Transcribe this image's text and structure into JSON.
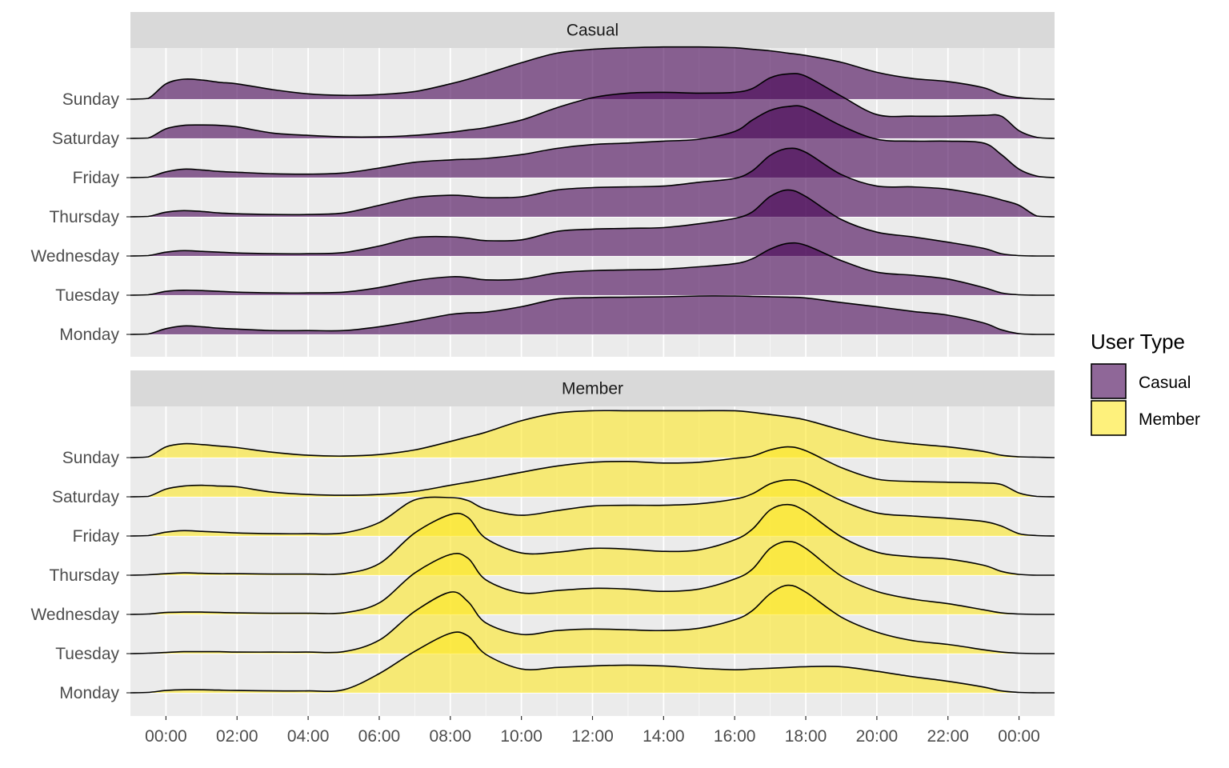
{
  "chart_data": {
    "type": "ridgeline",
    "x_axis": {
      "tick_labels": [
        "00:00",
        "02:00",
        "04:00",
        "06:00",
        "08:00",
        "10:00",
        "12:00",
        "14:00",
        "16:00",
        "18:00",
        "20:00",
        "22:00",
        "00:00"
      ],
      "tick_hours": [
        0,
        2,
        4,
        6,
        8,
        10,
        12,
        14,
        16,
        18,
        20,
        22,
        24
      ],
      "range_hours": [
        -1,
        25
      ]
    },
    "days": [
      "Monday",
      "Tuesday",
      "Wednesday",
      "Thursday",
      "Friday",
      "Saturday",
      "Sunday"
    ],
    "x_hours": [
      -1.0,
      -0.5,
      0,
      0.5,
      1,
      1.5,
      2,
      3,
      4,
      5,
      6,
      7,
      8,
      8.5,
      9,
      10,
      11,
      12,
      13,
      14,
      15,
      16,
      16.5,
      17,
      17.5,
      18,
      19,
      20,
      21,
      22,
      23,
      23.5,
      24,
      24.5,
      25
    ],
    "panels": [
      {
        "strip_label": "Casual",
        "fill": "#440154",
        "series": [
          {
            "day": "Monday",
            "values": [
              0,
              0.01,
              0.15,
              0.22,
              0.2,
              0.16,
              0.14,
              0.1,
              0.1,
              0.1,
              0.2,
              0.35,
              0.52,
              0.56,
              0.58,
              0.72,
              0.92,
              0.96,
              0.97,
              0.98,
              1.0,
              1.0,
              0.99,
              0.98,
              0.97,
              0.95,
              0.83,
              0.72,
              0.6,
              0.5,
              0.3,
              0.12,
              0.02,
              0,
              0
            ]
          },
          {
            "day": "Tuesday",
            "values": [
              0,
              0.01,
              0.1,
              0.13,
              0.12,
              0.1,
              0.08,
              0.06,
              0.06,
              0.08,
              0.2,
              0.38,
              0.48,
              0.46,
              0.4,
              0.42,
              0.58,
              0.64,
              0.66,
              0.68,
              0.74,
              0.82,
              0.95,
              1.2,
              1.35,
              1.3,
              0.9,
              0.6,
              0.52,
              0.42,
              0.2,
              0.06,
              0.01,
              0,
              0
            ]
          },
          {
            "day": "Wednesday",
            "values": [
              0,
              0.01,
              0.1,
              0.14,
              0.12,
              0.1,
              0.08,
              0.06,
              0.06,
              0.09,
              0.26,
              0.48,
              0.5,
              0.46,
              0.4,
              0.42,
              0.64,
              0.7,
              0.72,
              0.74,
              0.84,
              0.98,
              1.15,
              1.55,
              1.72,
              1.55,
              0.95,
              0.62,
              0.5,
              0.36,
              0.2,
              0.06,
              0.01,
              0,
              0
            ]
          },
          {
            "day": "Thursday",
            "values": [
              0,
              0.01,
              0.12,
              0.16,
              0.14,
              0.1,
              0.08,
              0.06,
              0.06,
              0.1,
              0.3,
              0.5,
              0.56,
              0.54,
              0.5,
              0.52,
              0.7,
              0.76,
              0.78,
              0.8,
              0.9,
              1.0,
              1.2,
              1.6,
              1.78,
              1.68,
              1.1,
              0.8,
              0.78,
              0.72,
              0.56,
              0.44,
              0.3,
              0.02,
              0
            ]
          },
          {
            "day": "Friday",
            "values": [
              0,
              0.01,
              0.15,
              0.22,
              0.2,
              0.16,
              0.14,
              0.1,
              0.09,
              0.12,
              0.25,
              0.4,
              0.46,
              0.48,
              0.5,
              0.6,
              0.76,
              0.86,
              0.9,
              0.95,
              1.0,
              1.2,
              1.5,
              1.75,
              1.85,
              1.82,
              1.35,
              1.0,
              0.95,
              0.95,
              0.9,
              0.6,
              0.22,
              0.04,
              0
            ]
          },
          {
            "day": "Saturday",
            "values": [
              0,
              0.01,
              0.25,
              0.34,
              0.35,
              0.34,
              0.3,
              0.14,
              0.08,
              0.04,
              0.04,
              0.08,
              0.16,
              0.22,
              0.28,
              0.48,
              0.8,
              1.06,
              1.18,
              1.2,
              1.18,
              1.2,
              1.3,
              1.58,
              1.68,
              1.62,
              1.1,
              0.62,
              0.58,
              0.58,
              0.6,
              0.58,
              0.2,
              0.03,
              0
            ]
          },
          {
            "day": "Sunday",
            "values": [
              0,
              0.02,
              0.4,
              0.52,
              0.5,
              0.44,
              0.4,
              0.25,
              0.14,
              0.1,
              0.12,
              0.2,
              0.4,
              0.52,
              0.66,
              0.95,
              1.2,
              1.3,
              1.34,
              1.36,
              1.36,
              1.34,
              1.3,
              1.26,
              1.2,
              1.14,
              0.96,
              0.7,
              0.54,
              0.46,
              0.3,
              0.12,
              0.04,
              0.01,
              0
            ]
          }
        ]
      },
      {
        "strip_label": "Member",
        "fill": "#FDE725",
        "series": [
          {
            "day": "Monday",
            "values": [
              0,
              0.01,
              0.06,
              0.08,
              0.08,
              0.07,
              0.06,
              0.05,
              0.05,
              0.08,
              0.5,
              1.08,
              1.55,
              1.48,
              1.0,
              0.62,
              0.66,
              0.7,
              0.72,
              0.7,
              0.64,
              0.6,
              0.62,
              0.64,
              0.66,
              0.68,
              0.68,
              0.56,
              0.42,
              0.3,
              0.15,
              0.05,
              0.01,
              0,
              0
            ]
          },
          {
            "day": "Tuesday",
            "values": [
              0,
              0.01,
              0.03,
              0.05,
              0.05,
              0.05,
              0.04,
              0.04,
              0.04,
              0.05,
              0.35,
              1.1,
              1.6,
              1.35,
              0.8,
              0.5,
              0.6,
              0.64,
              0.62,
              0.6,
              0.66,
              0.88,
              1.12,
              1.56,
              1.78,
              1.6,
              0.95,
              0.56,
              0.34,
              0.24,
              0.1,
              0.04,
              0.01,
              0,
              0
            ]
          },
          {
            "day": "Wednesday",
            "values": [
              0,
              0.01,
              0.05,
              0.06,
              0.06,
              0.05,
              0.04,
              0.03,
              0.03,
              0.04,
              0.3,
              1.08,
              1.56,
              1.46,
              0.9,
              0.56,
              0.62,
              0.68,
              0.66,
              0.6,
              0.66,
              0.92,
              1.18,
              1.72,
              1.9,
              1.72,
              1.0,
              0.6,
              0.4,
              0.28,
              0.12,
              0.04,
              0.01,
              0,
              0
            ]
          },
          {
            "day": "Thursday",
            "values": [
              0,
              0.01,
              0.04,
              0.06,
              0.05,
              0.04,
              0.04,
              0.03,
              0.03,
              0.04,
              0.3,
              1.1,
              1.58,
              1.5,
              0.96,
              0.58,
              0.6,
              0.7,
              0.68,
              0.62,
              0.66,
              0.92,
              1.2,
              1.7,
              1.84,
              1.66,
              1.0,
              0.6,
              0.48,
              0.42,
              0.26,
              0.1,
              0.02,
              0,
              0
            ]
          },
          {
            "day": "Friday",
            "values": [
              0,
              0.01,
              0.1,
              0.14,
              0.12,
              0.1,
              0.08,
              0.06,
              0.06,
              0.08,
              0.35,
              0.94,
              1.0,
              0.92,
              0.7,
              0.54,
              0.66,
              0.78,
              0.8,
              0.8,
              0.84,
              0.96,
              1.1,
              1.36,
              1.46,
              1.38,
              0.92,
              0.6,
              0.52,
              0.46,
              0.38,
              0.26,
              0.06,
              0.01,
              0
            ]
          },
          {
            "day": "Saturday",
            "values": [
              0,
              0.01,
              0.2,
              0.28,
              0.3,
              0.28,
              0.26,
              0.12,
              0.06,
              0.04,
              0.06,
              0.14,
              0.3,
              0.38,
              0.46,
              0.64,
              0.8,
              0.9,
              0.92,
              0.88,
              0.9,
              1.0,
              1.06,
              1.22,
              1.3,
              1.2,
              0.76,
              0.46,
              0.4,
              0.38,
              0.36,
              0.32,
              0.1,
              0.01,
              0
            ]
          },
          {
            "day": "Sunday",
            "values": [
              0,
              0.02,
              0.28,
              0.36,
              0.34,
              0.3,
              0.26,
              0.14,
              0.06,
              0.04,
              0.08,
              0.2,
              0.42,
              0.54,
              0.66,
              0.96,
              1.16,
              1.22,
              1.22,
              1.22,
              1.22,
              1.22,
              1.18,
              1.12,
              1.06,
              0.98,
              0.72,
              0.48,
              0.36,
              0.28,
              0.16,
              0.06,
              0.02,
              0.01,
              0
            ]
          }
        ]
      }
    ],
    "legend": {
      "title": "User Type",
      "position": "right",
      "items": [
        {
          "label": "Casual",
          "color": "#440154"
        },
        {
          "label": "Member",
          "color": "#FDE725"
        }
      ]
    },
    "fill_alpha": 0.6,
    "grid": true
  }
}
